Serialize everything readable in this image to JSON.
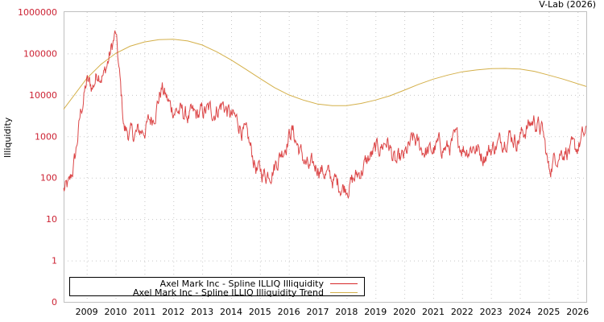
{
  "header": {
    "credit": "V-Lab (2026)"
  },
  "axes": {
    "ylabel": "Illiquidity",
    "yticks": [
      "1000000",
      "100000",
      "10000",
      "1000",
      "100",
      "10",
      "1",
      "0"
    ],
    "xticks": [
      "2009",
      "2010",
      "2011",
      "2012",
      "2013",
      "2014",
      "2015",
      "2016",
      "2017",
      "2018",
      "2019",
      "2020",
      "2021",
      "2022",
      "2023",
      "2024",
      "2025",
      "2026"
    ]
  },
  "legend": {
    "items": [
      {
        "label": "Axel Mark Inc - Spline ILLIQ Illiquidity",
        "color": "#d62728"
      },
      {
        "label": "Axel Mark Inc - Spline ILLIQ Illiquidity Trend",
        "color": "#d4b04a"
      }
    ]
  },
  "colors": {
    "series": "#d62728",
    "trend": "#d4b04a",
    "ytick": "#cc2233",
    "grid": "#c8c8c8",
    "frame": "#c0c0c0"
  },
  "chart_data": {
    "type": "line",
    "title": "",
    "xlabel": "",
    "ylabel": "Illiquidity",
    "yscale": "log",
    "ylim": [
      0,
      1000000
    ],
    "xlim": [
      2008.2,
      2026.3
    ],
    "grid": true,
    "legend_position": "bottom-left",
    "series": [
      {
        "name": "Axel Mark Inc - Spline ILLIQ Illiquidity",
        "x": [
          2008.2,
          2008.4,
          2008.6,
          2008.8,
          2009.0,
          2009.2,
          2009.4,
          2009.6,
          2009.8,
          2010.0,
          2010.1,
          2010.3,
          2010.6,
          2011.0,
          2011.3,
          2011.6,
          2011.9,
          2012.2,
          2012.5,
          2012.8,
          2013.1,
          2013.4,
          2013.7,
          2014.0,
          2014.3,
          2014.6,
          2014.9,
          2015.2,
          2015.5,
          2015.8,
          2016.1,
          2016.4,
          2016.7,
          2017.0,
          2017.3,
          2017.6,
          2017.9,
          2018.2,
          2018.5,
          2018.8,
          2019.1,
          2019.4,
          2019.7,
          2020.0,
          2020.3,
          2020.6,
          2020.9,
          2021.2,
          2021.5,
          2021.8,
          2022.1,
          2022.4,
          2022.7,
          2023.0,
          2023.3,
          2023.6,
          2023.9,
          2024.2,
          2024.5,
          2024.8,
          2025.0,
          2025.3,
          2025.6,
          2025.9,
          2026.2
        ],
        "values": [
          50,
          60,
          300,
          4000,
          20000,
          15000,
          40000,
          30000,
          90000,
          300000,
          50000,
          1500,
          1000,
          1500,
          3000,
          15000,
          5000,
          4000,
          3000,
          3000,
          4000,
          4000,
          6000,
          3000,
          2000,
          700,
          150,
          120,
          200,
          500,
          1500,
          400,
          150,
          200,
          120,
          80,
          60,
          80,
          150,
          300,
          500,
          800,
          200,
          300,
          800,
          500,
          400,
          600,
          500,
          800,
          500,
          600,
          350,
          500,
          700,
          1200,
          800,
          1500,
          2500,
          1200,
          150,
          400,
          500,
          400,
          1000
        ]
      },
      {
        "name": "Axel Mark Inc - Spline ILLIQ Illiquidity Trend",
        "x": [
          2008.2,
          2009.0,
          2009.5,
          2010.0,
          2010.5,
          2011.0,
          2011.5,
          2012.0,
          2012.5,
          2013.0,
          2013.5,
          2014.0,
          2014.5,
          2015.0,
          2015.5,
          2016.0,
          2016.5,
          2017.0,
          2017.5,
          2018.0,
          2018.5,
          2019.0,
          2019.5,
          2020.0,
          2020.5,
          2021.0,
          2021.5,
          2022.0,
          2022.5,
          2023.0,
          2023.5,
          2024.0,
          2024.5,
          2025.0,
          2025.5,
          2026.3
        ],
        "values": [
          4500,
          25000,
          55000,
          100000,
          150000,
          190000,
          215000,
          220000,
          200000,
          160000,
          110000,
          70000,
          42000,
          25000,
          15000,
          10000,
          7500,
          6000,
          5500,
          5500,
          6200,
          7500,
          9500,
          13000,
          18000,
          24000,
          30000,
          36000,
          40000,
          43000,
          43500,
          42000,
          37000,
          30000,
          24000,
          16000
        ]
      }
    ]
  }
}
